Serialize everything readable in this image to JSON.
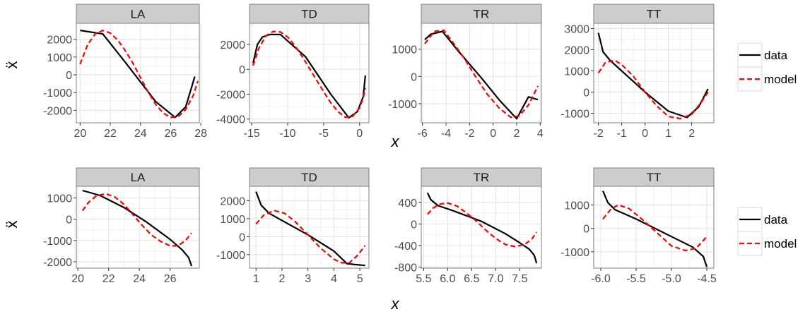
{
  "colors": {
    "data": "#000000",
    "model": "#ff0000",
    "strip": "#cccccc",
    "panel_border": "#7f7f7f",
    "grid_major": "#e6e6e6",
    "grid_minor": "#f2f2f2"
  },
  "legend": {
    "data_label": "data",
    "model_label": "model"
  },
  "chart_data": [
    {
      "type": "line",
      "xlabel": "x",
      "ylabel": "ẍ",
      "legend_position": "right",
      "grid": true,
      "panels": [
        {
          "strip": "LA",
          "xlim": [
            19.75,
            27.9
          ],
          "ylim": [
            -2700,
            2900
          ],
          "xticks": [
            20,
            22,
            24,
            26,
            28
          ],
          "yticks": [
            -2000,
            -1000,
            0,
            1000,
            2000
          ],
          "series": [
            {
              "name": "data",
              "x": [
                20,
                21.5,
                23,
                25,
                26.3,
                27,
                27.6
              ],
              "y": [
                2500,
                2300,
                700,
                -1500,
                -2400,
                -1800,
                -100
              ]
            },
            {
              "name": "model",
              "x": [
                20,
                20.5,
                21,
                21.5,
                22,
                22.5,
                23,
                23.5,
                24,
                24.5,
                25,
                25.5,
                26,
                26.5,
                27,
                27.5,
                27.8
              ],
              "y": [
                600,
                1700,
                2300,
                2500,
                2350,
                1950,
                1350,
                650,
                -150,
                -950,
                -1650,
                -2150,
                -2400,
                -2350,
                -1950,
                -1150,
                -350
              ]
            }
          ]
        },
        {
          "strip": "TD",
          "xlim": [
            -15.3,
            1.3
          ],
          "ylim": [
            -4300,
            3700
          ],
          "xticks": [
            -15,
            -10,
            -5,
            0
          ],
          "yticks": [
            -4000,
            -2000,
            0,
            2000
          ],
          "series": [
            {
              "name": "data",
              "x": [
                -14.8,
                -14.2,
                -13.5,
                -12.5,
                -11,
                -7.5,
                -4,
                -1.5,
                -0.3,
                0.5,
                0.8
              ],
              "y": [
                500,
                2000,
                2600,
                2800,
                2800,
                1000,
                -2000,
                -3900,
                -3400,
                -2200,
                -500
              ]
            },
            {
              "name": "model",
              "x": [
                -14.8,
                -14,
                -13,
                -12,
                -11,
                -10,
                -9,
                -8,
                -7,
                -6,
                -5,
                -4,
                -3,
                -2,
                -1,
                0,
                0.5,
                0.8
              ],
              "y": [
                300,
                1700,
                2700,
                3050,
                3000,
                2600,
                1900,
                1050,
                100,
                -850,
                -1800,
                -2700,
                -3400,
                -3850,
                -3800,
                -3100,
                -2300,
                -1500
              ]
            }
          ]
        },
        {
          "strip": "TR",
          "xlim": [
            -6.1,
            4.1
          ],
          "ylim": [
            -1700,
            1950
          ],
          "xticks": [
            -6,
            -4,
            -2,
            0,
            2,
            4
          ],
          "yticks": [
            -1000,
            0,
            1000
          ],
          "series": [
            {
              "name": "data",
              "x": [
                -5.8,
                -5.3,
                -4.3,
                -3,
                -1,
                0.5,
                2,
                3,
                3.8
              ],
              "y": [
                1350,
                1550,
                1650,
                950,
                -50,
                -850,
                -1550,
                -750,
                -850
              ]
            },
            {
              "name": "model",
              "x": [
                -5.8,
                -5,
                -4.2,
                -3.5,
                -2.5,
                -1.5,
                -0.5,
                0.5,
                1.5,
                2.2,
                3,
                3.8
              ],
              "y": [
                1200,
                1650,
                1700,
                1300,
                700,
                0,
                -650,
                -1150,
                -1500,
                -1450,
                -1050,
                -350
              ]
            }
          ]
        },
        {
          "strip": "TT",
          "xlim": [
            -2.2,
            2.95
          ],
          "ylim": [
            -1450,
            3250
          ],
          "xticks": [
            -2,
            -1,
            0,
            1,
            2
          ],
          "yticks": [
            -1000,
            0,
            1000,
            2000,
            3000
          ],
          "series": [
            {
              "name": "data",
              "x": [
                -2,
                -1.8,
                -1.5,
                -1,
                0,
                0.5,
                1,
                1.8,
                2.3,
                2.7
              ],
              "y": [
                2800,
                1900,
                1500,
                1000,
                0,
                -450,
                -900,
                -1200,
                -700,
                150
              ]
            },
            {
              "name": "model",
              "x": [
                -2,
                -1.7,
                -1.3,
                -1,
                -0.5,
                0,
                0.5,
                1,
                1.5,
                2,
                2.4,
                2.7
              ],
              "y": [
                900,
                1400,
                1500,
                1300,
                750,
                0,
                -650,
                -1150,
                -1250,
                -1050,
                -500,
                0
              ]
            }
          ]
        }
      ]
    },
    {
      "type": "line",
      "xlabel": "x",
      "ylabel": "ẍ",
      "legend_position": "right",
      "grid": true,
      "panels": [
        {
          "strip": "LA",
          "xlim": [
            19.9,
            27.9
          ],
          "ylim": [
            -2300,
            1550
          ],
          "xticks": [
            20,
            22,
            24,
            26
          ],
          "yticks": [
            -2000,
            -1000,
            0,
            1000
          ],
          "series": [
            {
              "name": "data",
              "x": [
                20.3,
                20.8,
                21.5,
                23,
                24.5,
                26,
                26.8,
                27.2,
                27.4
              ],
              "y": [
                1350,
                1250,
                1100,
                550,
                -150,
                -950,
                -1450,
                -1800,
                -2200
              ]
            },
            {
              "name": "model",
              "x": [
                20.3,
                20.7,
                21.2,
                21.8,
                22.4,
                23,
                23.6,
                24.2,
                24.8,
                25.4,
                26,
                26.5,
                27,
                27.4
              ],
              "y": [
                400,
                800,
                1100,
                1200,
                1050,
                700,
                200,
                -300,
                -750,
                -1050,
                -1250,
                -1250,
                -1000,
                -650
              ]
            }
          ]
        },
        {
          "strip": "TD",
          "xlim": [
            0.75,
            5.35
          ],
          "ylim": [
            -1750,
            2800
          ],
          "xticks": [
            1,
            2,
            3,
            4,
            5
          ],
          "yticks": [
            -1000,
            0,
            1000,
            2000
          ],
          "series": [
            {
              "name": "data",
              "x": [
                1,
                1.2,
                1.5,
                2,
                3,
                4,
                4.5,
                4.8,
                5.2
              ],
              "y": [
                2500,
                1750,
                1300,
                900,
                100,
                -800,
                -1500,
                -1550,
                -1600
              ]
            },
            {
              "name": "model",
              "x": [
                1,
                1.3,
                1.7,
                2.1,
                2.5,
                3,
                3.5,
                4,
                4.3,
                4.6,
                4.9,
                5.2
              ],
              "y": [
                700,
                1200,
                1450,
                1300,
                850,
                100,
                -650,
                -1250,
                -1450,
                -1450,
                -1050,
                -500
              ]
            }
          ]
        },
        {
          "strip": "TR",
          "xlim": [
            5.45,
            7.95
          ],
          "ylim": [
            -820,
            700
          ],
          "xticks": [
            5.5,
            6.0,
            6.5,
            7.0,
            7.5
          ],
          "yticks": [
            -800,
            -400,
            0,
            400
          ],
          "tick_labels_x": [
            "5.5",
            "6.0",
            "6.5",
            "7.0",
            "7.5"
          ],
          "series": [
            {
              "name": "data",
              "x": [
                5.58,
                5.65,
                5.8,
                6.1,
                6.7,
                7.2,
                7.5,
                7.7,
                7.8,
                7.85
              ],
              "y": [
                580,
                450,
                340,
                250,
                50,
                -180,
                -350,
                -470,
                -580,
                -730
              ]
            },
            {
              "name": "model",
              "x": [
                5.58,
                5.7,
                5.85,
                6,
                6.2,
                6.4,
                6.6,
                6.8,
                7,
                7.2,
                7.4,
                7.6,
                7.75,
                7.85
              ],
              "y": [
                180,
                300,
                370,
                390,
                330,
                200,
                50,
                -120,
                -270,
                -380,
                -420,
                -380,
                -280,
                -150
              ]
            }
          ]
        },
        {
          "strip": "TT",
          "xlim": [
            -6.1,
            -4.4
          ],
          "ylim": [
            -1700,
            1800
          ],
          "xticks": [
            -6.0,
            -5.5,
            -5.0,
            -4.5
          ],
          "yticks": [
            -1000,
            0,
            1000
          ],
          "tick_labels_x": [
            "-6.0",
            "-5.5",
            "-5.0",
            "-4.5"
          ],
          "series": [
            {
              "name": "data",
              "x": [
                -5.97,
                -5.9,
                -5.8,
                -5.5,
                -5,
                -4.7,
                -4.55,
                -4.5
              ],
              "y": [
                1600,
                1100,
                800,
                400,
                -350,
                -800,
                -1200,
                -1650
              ]
            },
            {
              "name": "model",
              "x": [
                -5.97,
                -5.85,
                -5.75,
                -5.6,
                -5.4,
                -5.2,
                -5.0,
                -4.8,
                -4.65,
                -4.5
              ],
              "y": [
                400,
                850,
                1000,
                850,
                350,
                -200,
                -750,
                -950,
                -850,
                -350
              ]
            }
          ]
        }
      ]
    }
  ]
}
